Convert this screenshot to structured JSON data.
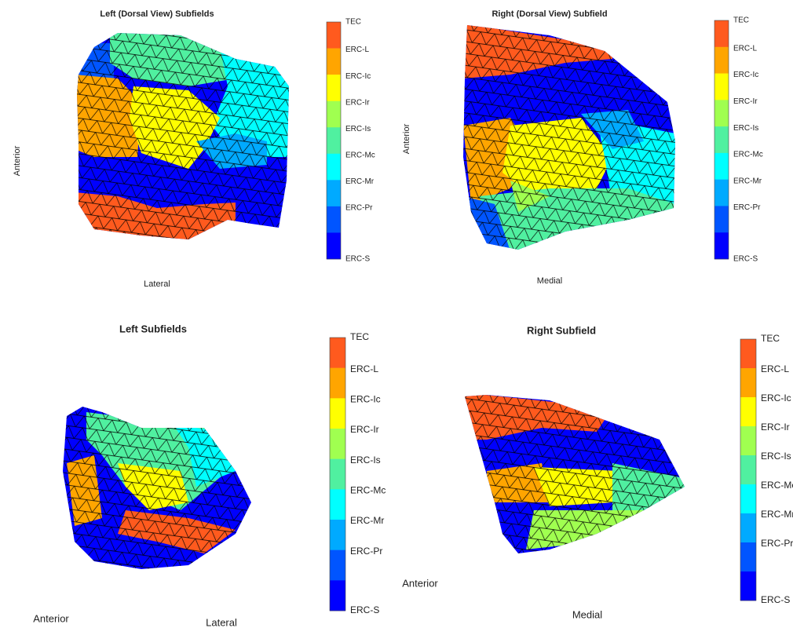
{
  "colorbar_colors": [
    "#ff5a1e",
    "#ffa500",
    "#ffff00",
    "#a0ff50",
    "#50f0a0",
    "#00ffff",
    "#00aaff",
    "#0055ff",
    "#0000ff"
  ],
  "panels": [
    {
      "title": "Left (Dorsal View) Subfields",
      "side_label": "Anterior",
      "bottom_label": "Lateral",
      "colorbar": [
        "TEC",
        "ERC-L",
        "ERC-Ic",
        "ERC-Ir",
        "ERC-Is",
        "ERC-Mc",
        "ERC-Mr",
        "ERC-Pr",
        "ERC-S"
      ]
    },
    {
      "title": "Right (Dorsal View) Subfield",
      "side_label": "Anterior",
      "bottom_label": "Medial",
      "colorbar": [
        "TEC",
        "ERC-L",
        "ERC-Ic",
        "ERC-Ir",
        "ERC-Is",
        "ERC-Mc",
        "ERC-Mr",
        "ERC-Pr",
        "ERC-S"
      ]
    },
    {
      "title": "Left Subfields",
      "side_label": "Anterior",
      "bottom_label": "Lateral",
      "colorbar": [
        "TEC",
        "ERC-L",
        "ERC-Ic",
        "ERC-Ir",
        "ERC-Is",
        "ERC-Mc",
        "ERC-Mr",
        "ERC-Pr",
        "ERC-S"
      ]
    },
    {
      "title": "Right Subfield",
      "side_label": "Anterior",
      "bottom_label": "Medial",
      "colorbar": [
        "TEC",
        "ERC-L",
        "ERC-Ic",
        "ERC-Ir",
        "ERC-Is",
        "ERC-Mc",
        "ERC-Mr",
        "ERC-Pr",
        "ERC-S"
      ]
    }
  ]
}
